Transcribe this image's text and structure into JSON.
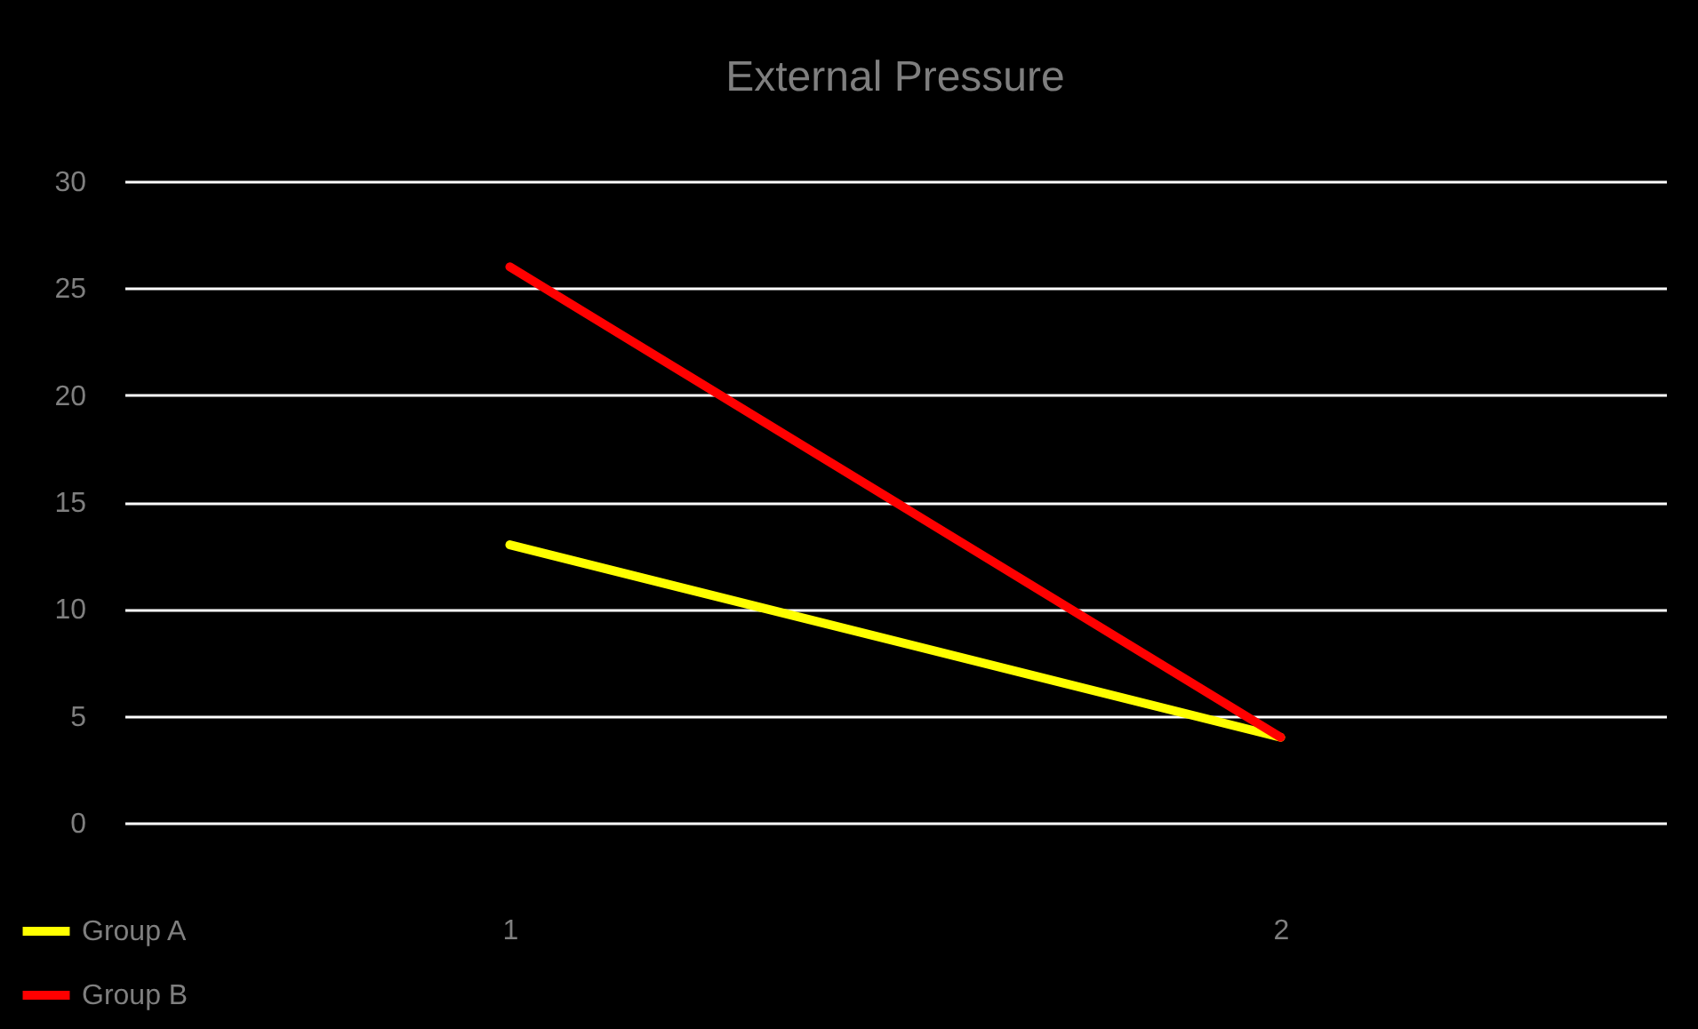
{
  "chart_data": {
    "type": "line",
    "title": "External Pressure",
    "categories": [
      "1",
      "2"
    ],
    "series": [
      {
        "name": "Group A",
        "color": "#ffff00",
        "values": [
          13,
          4
        ]
      },
      {
        "name": "Group B",
        "color": "#ff0000",
        "values": [
          26,
          4
        ]
      }
    ],
    "ylim": [
      0,
      30
    ],
    "yticks": [
      0,
      5,
      10,
      15,
      20,
      25,
      30
    ],
    "grid": "y",
    "legend": "bottom left",
    "marker": "none",
    "line_style": "solid"
  }
}
